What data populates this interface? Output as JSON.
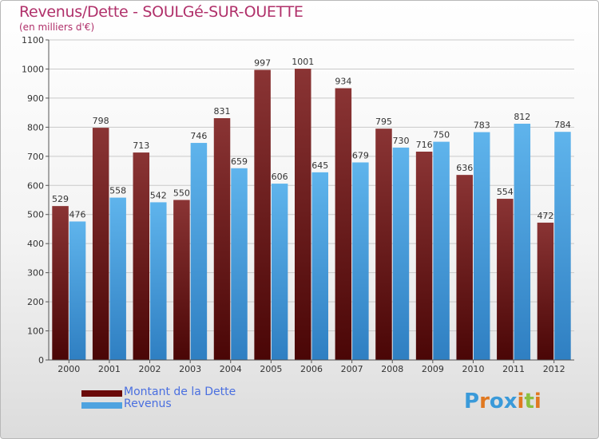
{
  "title": "Revenus/Dette - SOULGé-SUR-OUETTE",
  "subtitle": "(en milliers d'€)",
  "colors": {
    "dette": "#6b1a1a",
    "revenus": "#4ea3e0",
    "title": "#b0306a",
    "legend_text": "#4a6fe0"
  },
  "legend": {
    "dette": "Montant de la Dette",
    "revenus": "Revenus"
  },
  "logo": {
    "letters": [
      "P",
      "r",
      "o",
      "x",
      "i",
      "t",
      "i"
    ],
    "colors": [
      "#3a9ad9",
      "#e07820",
      "#3a9ad9",
      "#3a9ad9",
      "#e07820",
      "#8cbf3f",
      "#e07820"
    ]
  },
  "chart_data": {
    "type": "bar",
    "title": "Revenus/Dette - SOULGé-SUR-OUETTE",
    "ylabel": "(en milliers d'€)",
    "categories": [
      "2000",
      "2001",
      "2002",
      "2003",
      "2004",
      "2005",
      "2006",
      "2007",
      "2008",
      "2009",
      "2010",
      "2011",
      "2012"
    ],
    "series": [
      {
        "name": "Montant de la Dette",
        "values": [
          529,
          798,
          713,
          550,
          831,
          997,
          1001,
          934,
          795,
          716,
          636,
          554,
          472
        ]
      },
      {
        "name": "Revenus",
        "values": [
          476,
          558,
          542,
          746,
          659,
          606,
          645,
          679,
          730,
          750,
          783,
          812,
          784
        ]
      }
    ],
    "ylim": [
      0,
      1100
    ],
    "yticks": [
      0,
      100,
      200,
      300,
      400,
      500,
      600,
      700,
      800,
      900,
      1000,
      1100
    ],
    "grid": true,
    "legend_position": "bottom-left"
  }
}
